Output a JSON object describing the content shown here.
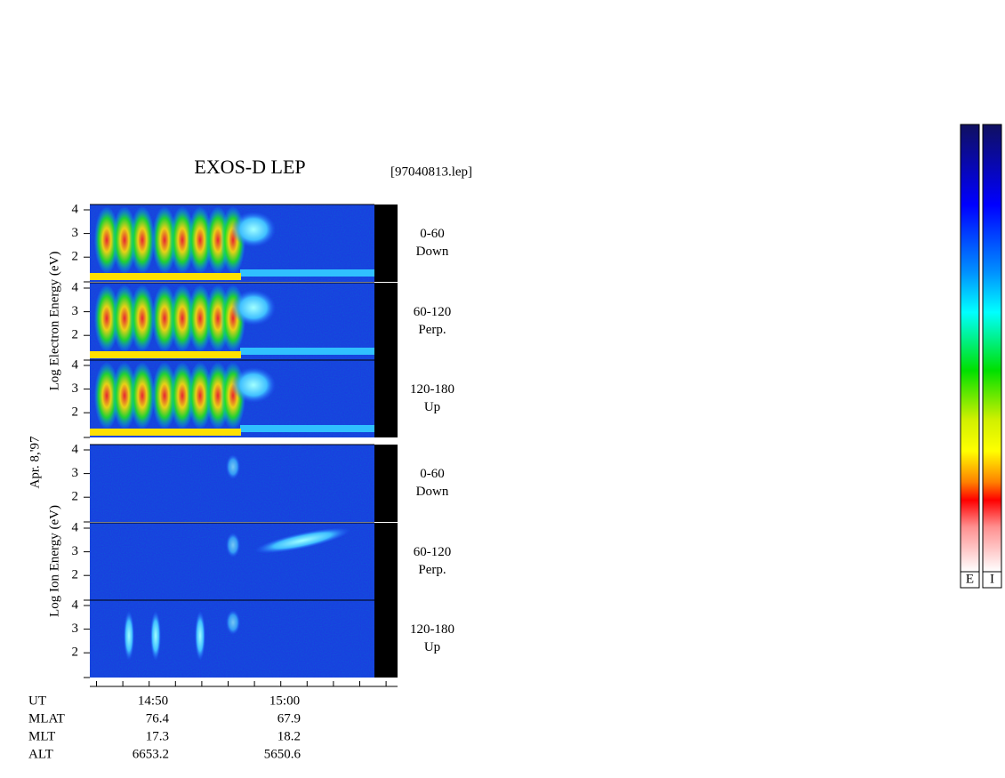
{
  "header": {
    "title": "EXOS-D LEP",
    "file": "[97040813.lep]"
  },
  "date": "Apr. 8,'97",
  "groups": [
    {
      "axis_label": "Log Electron Energy (eV)",
      "panels": [
        {
          "range": "0-60",
          "direction": "Down"
        },
        {
          "range": "60-120",
          "direction": "Perp."
        },
        {
          "range": "120-180",
          "direction": "Up"
        }
      ]
    },
    {
      "axis_label": "Log Ion Energy (eV)",
      "panels": [
        {
          "range": "0-60",
          "direction": "Down"
        },
        {
          "range": "60-120",
          "direction": "Perp."
        },
        {
          "range": "120-180",
          "direction": "Up"
        }
      ]
    }
  ],
  "y_ticks": [
    2,
    3,
    4
  ],
  "ephemeris": {
    "rows": [
      [
        "UT",
        "14:50",
        "15:00"
      ],
      [
        "MLAT",
        76.4,
        67.9
      ],
      [
        "MLT",
        17.3,
        18.2
      ],
      [
        "ALT",
        6653.2,
        5650.6
      ]
    ]
  },
  "colorbars": [
    "E",
    "I"
  ]
}
